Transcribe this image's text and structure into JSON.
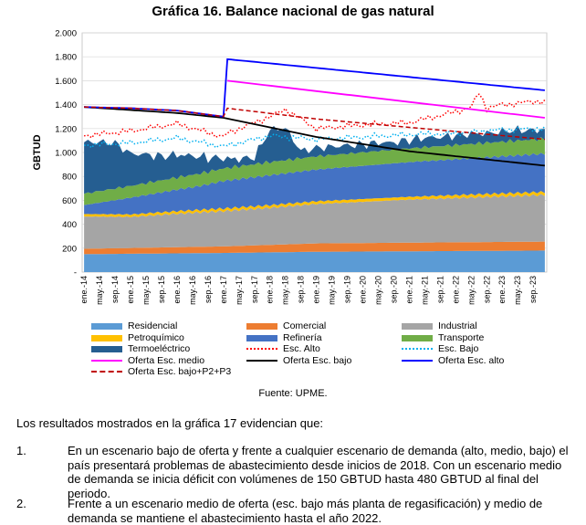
{
  "chart_data": {
    "type": "area",
    "title": "Gráfica 16. Balance nacional de gas natural",
    "ylabel": "GBTUD",
    "ylim": [
      0,
      2000
    ],
    "yticks": [
      "-",
      "200",
      "400",
      "600",
      "800",
      "1.000",
      "1.200",
      "1.400",
      "1.600",
      "1.800",
      "2.000"
    ],
    "xtick_labels": [
      "ene.-14",
      "may.-14",
      "sep.-14",
      "ene.-15",
      "may.-15",
      "sep.-15",
      "ene.-16",
      "may.-16",
      "sep.-16",
      "ene.-17",
      "may.-17",
      "sep.-17",
      "ene.-18",
      "may.-18",
      "sep.-18",
      "ene.-19",
      "may.-19",
      "sep.-19",
      "ene.-20",
      "may.-20",
      "sep.-20",
      "ene.-21",
      "may.-21",
      "sep.-21",
      "ene.-22",
      "may.-22",
      "sep.-22",
      "ene.-23",
      "may.-23",
      "sep.-23"
    ],
    "x_months": 120,
    "stacked_series": [
      {
        "name": "Residencial",
        "color": "#5b9bd5",
        "x": [
          0,
          36,
          60,
          119
        ],
        "values": [
          150,
          160,
          170,
          180
        ]
      },
      {
        "name": "Comercial",
        "color": "#ed7d31",
        "x": [
          0,
          36,
          60,
          119
        ],
        "values": [
          45,
          55,
          70,
          75
        ]
      },
      {
        "name": "Industrial",
        "color": "#a5a5a5",
        "x": [
          0,
          12,
          24,
          36,
          48,
          60,
          84,
          119
        ],
        "values": [
          270,
          260,
          280,
          295,
          310,
          330,
          360,
          390
        ]
      },
      {
        "name": "Petroquímico",
        "color": "#ffc000",
        "x": [
          0,
          119
        ],
        "values": [
          20,
          25
        ]
      },
      {
        "name": "Refinería",
        "color": "#4472c4",
        "x": [
          0,
          12,
          18,
          30,
          36,
          48,
          60,
          84,
          119
        ],
        "values": [
          75,
          140,
          160,
          200,
          230,
          250,
          265,
          290,
          320
        ]
      },
      {
        "name": "Transporte",
        "color": "#70ad47",
        "x": [
          0,
          36,
          48,
          60,
          84,
          119
        ],
        "values": [
          95,
          105,
          110,
          110,
          115,
          125
        ]
      },
      {
        "name": "Termoeléctrico",
        "color": "#255e91",
        "x": [
          0,
          4,
          8,
          12,
          16,
          20,
          24,
          28,
          32,
          36,
          40,
          44,
          48,
          52,
          56,
          60,
          64,
          68,
          72,
          76,
          80,
          84,
          88,
          92,
          96,
          100,
          104,
          108,
          112,
          116,
          119
        ],
        "values": [
          430,
          410,
          380,
          270,
          240,
          200,
          190,
          160,
          120,
          85,
          60,
          60,
          270,
          270,
          60,
          70,
          70,
          70,
          65,
          70,
          60,
          70,
          80,
          75,
          80,
          85,
          80,
          85,
          90,
          75,
          80
        ]
      }
    ],
    "line_series": [
      {
        "name": "Esc. Alto",
        "color": "#ff0000",
        "style": "dotted",
        "x": [
          0,
          12,
          24,
          36,
          37,
          48,
          52,
          56,
          60,
          72,
          84,
          96,
          100,
          102,
          104,
          108,
          112,
          116,
          119
        ],
        "values": [
          1140,
          1180,
          1240,
          1130,
          1160,
          1300,
          1360,
          1280,
          1200,
          1230,
          1250,
          1340,
          1380,
          1500,
          1370,
          1400,
          1410,
          1430,
          1420
        ]
      },
      {
        "name": "Esc. Bajo",
        "color": "#00b0f0",
        "style": "dotted",
        "x": [
          0,
          12,
          24,
          36,
          48,
          60,
          72,
          84,
          96,
          108,
          119
        ],
        "values": [
          1060,
          1080,
          1120,
          1050,
          1140,
          1110,
          1130,
          1150,
          1160,
          1190,
          1200
        ]
      },
      {
        "name": "Oferta Esc. medio",
        "color": "#ff00ff",
        "style": "solid",
        "x": [
          36,
          37,
          119
        ],
        "values": [
          null,
          1600,
          1290
        ]
      },
      {
        "name": "Oferta Esc. bajo",
        "color": "#000000",
        "style": "solid",
        "x": [
          0,
          24,
          36,
          60,
          84,
          119
        ],
        "values": [
          1380,
          1330,
          1290,
          1130,
          1010,
          890
        ]
      },
      {
        "name": "Oferta Esc. alto",
        "color": "#0000ff",
        "style": "solid",
        "x": [
          0,
          12,
          24,
          36,
          37,
          119
        ],
        "values": [
          1380,
          1370,
          1350,
          1300,
          1780,
          1520
        ]
      },
      {
        "name": "Oferta Esc. bajo+P2+P3",
        "color": "#c00000",
        "style": "dashed",
        "x": [
          0,
          12,
          24,
          36,
          37,
          60,
          84,
          119
        ],
        "values": [
          1380,
          1370,
          1350,
          1300,
          1370,
          1280,
          1210,
          1110
        ]
      }
    ],
    "legend_position": "bottom"
  },
  "legend": {
    "items": [
      {
        "label": "Residencial",
        "kind": "area",
        "color": "#5b9bd5"
      },
      {
        "label": "Comercial",
        "kind": "area",
        "color": "#ed7d31"
      },
      {
        "label": "Industrial",
        "kind": "area",
        "color": "#a5a5a5"
      },
      {
        "label": "Petroquímico",
        "kind": "area",
        "color": "#ffc000"
      },
      {
        "label": "Refinería",
        "kind": "area",
        "color": "#4472c4"
      },
      {
        "label": "Transporte",
        "kind": "area",
        "color": "#70ad47"
      },
      {
        "label": "Termoeléctrico",
        "kind": "area",
        "color": "#255e91"
      },
      {
        "label": "Esc. Alto",
        "kind": "dotted",
        "color": "#ff0000"
      },
      {
        "label": "Esc. Bajo",
        "kind": "dotted",
        "color": "#00b0f0"
      },
      {
        "label": "Oferta Esc. medio",
        "kind": "solid",
        "color": "#ff00ff"
      },
      {
        "label": "Oferta Esc. bajo",
        "kind": "solid",
        "color": "#000000"
      },
      {
        "label": "Oferta Esc. alto",
        "kind": "solid",
        "color": "#0000ff"
      },
      {
        "label": "Oferta Esc. bajo+P2+P3",
        "kind": "dashed",
        "color": "#c00000"
      }
    ]
  },
  "source": "Fuente: UPME.",
  "document": {
    "intro": "Los resultados mostrados en la gráfica 17 evidencian que:",
    "items": [
      {
        "number": "1.",
        "text": "En un escenario bajo de oferta y frente a cualquier escenario de demanda (alto, medio, bajo) el país presentará problemas de abastecimiento desde inicios de 2018. Con un escenario medio de demanda se inicia déficit con volúmenes de 150 GBTUD hasta 480 GBTUD al final del periodo."
      },
      {
        "number": "2.",
        "text": "Frente a un escenario medio de oferta (esc. bajo más planta de regasificación) y medio de demanda se mantiene el abastecimiento hasta el año 2022."
      }
    ]
  }
}
